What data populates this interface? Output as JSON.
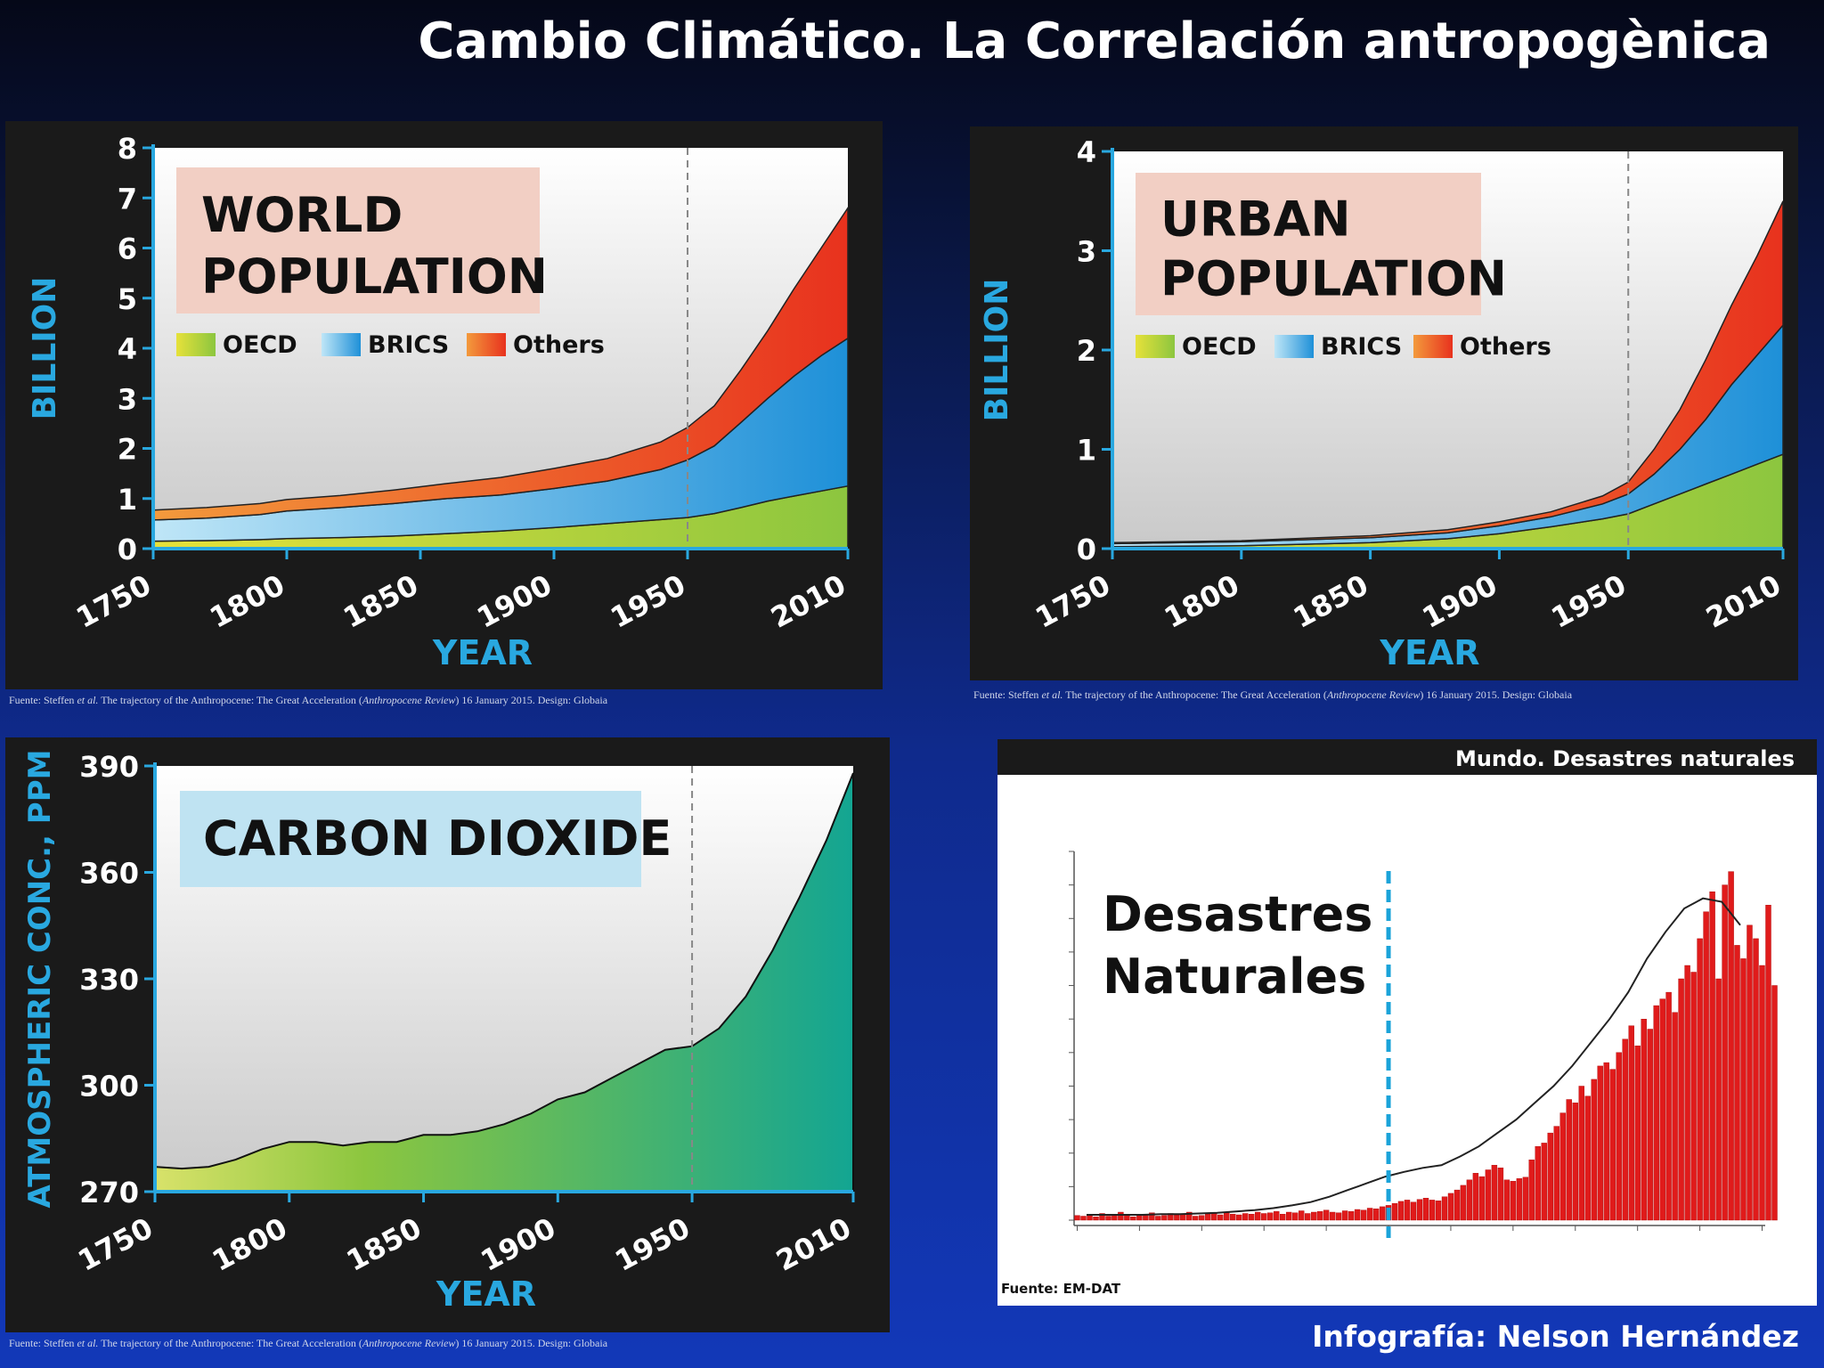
{
  "title": "Cambio Climático. La Correlación antropogènica",
  "credit": "Infografía: Nelson Hernández",
  "colors": {
    "accent_axis": "#29a8e0",
    "highlight_year": "#e8262b",
    "oecd": "#8cc63f",
    "brics": "#1e90d8",
    "others": "#e8321e",
    "co2": "#13a592",
    "disaster_bars": "#e01b1b"
  },
  "chart_data": [
    {
      "id": "world_population",
      "type": "area",
      "title": "WORLD POPULATION",
      "xlabel": "YEAR",
      "ylabel": "BILLION",
      "x_ticks": [
        "1750",
        "1800",
        "1850",
        "1900",
        "1950",
        "2010"
      ],
      "highlight_tick": "1950",
      "y_ticks": [
        "0",
        "1",
        "2",
        "3",
        "4",
        "5",
        "6",
        "7",
        "8"
      ],
      "xlim": [
        1750,
        2010
      ],
      "ylim": [
        0,
        8
      ],
      "x": [
        1750,
        1770,
        1790,
        1800,
        1820,
        1840,
        1860,
        1880,
        1900,
        1920,
        1940,
        1950,
        1960,
        1970,
        1980,
        1990,
        2000,
        2010
      ],
      "series": [
        {
          "name": "OECD",
          "values": [
            0.15,
            0.16,
            0.18,
            0.2,
            0.22,
            0.25,
            0.3,
            0.35,
            0.42,
            0.5,
            0.58,
            0.62,
            0.7,
            0.82,
            0.95,
            1.05,
            1.15,
            1.25
          ]
        },
        {
          "name": "BRICS",
          "values": [
            0.42,
            0.45,
            0.5,
            0.55,
            0.6,
            0.65,
            0.7,
            0.72,
            0.78,
            0.85,
            1.0,
            1.15,
            1.35,
            1.7,
            2.05,
            2.4,
            2.7,
            2.95
          ]
        },
        {
          "name": "Others",
          "values": [
            0.2,
            0.21,
            0.22,
            0.23,
            0.24,
            0.27,
            0.3,
            0.35,
            0.4,
            0.45,
            0.55,
            0.65,
            0.8,
            1.05,
            1.35,
            1.75,
            2.15,
            2.6
          ]
        }
      ],
      "grid": false,
      "legend": "top-left"
    },
    {
      "id": "urban_population",
      "type": "area",
      "title": "URBAN POPULATION",
      "xlabel": "YEAR",
      "ylabel": "BILLION",
      "x_ticks": [
        "1750",
        "1800",
        "1850",
        "1900",
        "1950",
        "2010"
      ],
      "highlight_tick": "1950",
      "y_ticks": [
        "0",
        "1",
        "2",
        "3",
        "4"
      ],
      "xlim": [
        1750,
        2010
      ],
      "ylim": [
        0,
        4
      ],
      "x": [
        1750,
        1800,
        1850,
        1880,
        1900,
        1920,
        1940,
        1950,
        1960,
        1970,
        1980,
        1990,
        2000,
        2010
      ],
      "series": [
        {
          "name": "OECD",
          "values": [
            0.02,
            0.03,
            0.06,
            0.1,
            0.15,
            0.22,
            0.3,
            0.35,
            0.45,
            0.55,
            0.65,
            0.75,
            0.85,
            0.95
          ]
        },
        {
          "name": "BRICS",
          "values": [
            0.03,
            0.04,
            0.05,
            0.06,
            0.08,
            0.1,
            0.15,
            0.2,
            0.3,
            0.45,
            0.65,
            0.9,
            1.1,
            1.3
          ]
        },
        {
          "name": "Others",
          "values": [
            0.01,
            0.01,
            0.02,
            0.03,
            0.04,
            0.05,
            0.08,
            0.12,
            0.25,
            0.4,
            0.6,
            0.8,
            1.0,
            1.25
          ]
        }
      ],
      "grid": false,
      "legend": "top-left"
    },
    {
      "id": "carbon_dioxide",
      "type": "area",
      "title": "CARBON DIOXIDE",
      "xlabel": "YEAR",
      "ylabel": "ATMOSPHERIC CONC., PPM",
      "x_ticks": [
        "1750",
        "1800",
        "1850",
        "1900",
        "1950",
        "2010"
      ],
      "highlight_tick": "1950",
      "y_ticks": [
        "270",
        "300",
        "330",
        "360",
        "390"
      ],
      "xlim": [
        1750,
        2010
      ],
      "ylim": [
        270,
        390
      ],
      "x": [
        1750,
        1760,
        1770,
        1780,
        1790,
        1800,
        1810,
        1820,
        1830,
        1840,
        1850,
        1860,
        1870,
        1880,
        1890,
        1900,
        1910,
        1920,
        1930,
        1940,
        1950,
        1960,
        1970,
        1980,
        1990,
        2000,
        2010
      ],
      "values": [
        277,
        276.5,
        277,
        279,
        282,
        284,
        284,
        283,
        284,
        284,
        286,
        286,
        287,
        289,
        292,
        296,
        298,
        302,
        306,
        310,
        311,
        316,
        325,
        338,
        353,
        369,
        388
      ],
      "grid": false
    },
    {
      "id": "natural_disasters",
      "type": "bar",
      "title": "Mundo.  Desastres naturales",
      "annotation": "Desastres Naturales",
      "source": "Fuente: EM-DAT",
      "xlim": [
        1900,
        2011
      ],
      "ylim": [
        0,
        550
      ],
      "marker_year": 1950,
      "years_start": 1900,
      "values": [
        7,
        6,
        8,
        5,
        10,
        6,
        9,
        12,
        7,
        5,
        8,
        9,
        11,
        6,
        7,
        10,
        8,
        9,
        12,
        6,
        7,
        9,
        10,
        8,
        11,
        9,
        8,
        10,
        9,
        12,
        10,
        11,
        13,
        9,
        12,
        11,
        14,
        10,
        12,
        13,
        15,
        12,
        11,
        14,
        13,
        16,
        15,
        18,
        17,
        20,
        22,
        25,
        28,
        30,
        27,
        31,
        33,
        30,
        29,
        35,
        40,
        45,
        52,
        60,
        70,
        65,
        75,
        82,
        78,
        60,
        58,
        62,
        64,
        90,
        110,
        115,
        130,
        140,
        160,
        180,
        175,
        200,
        185,
        210,
        230,
        235,
        225,
        250,
        270,
        290,
        260,
        300,
        285,
        320,
        330,
        340,
        310,
        360,
        380,
        370,
        420,
        460,
        490,
        360,
        500,
        520,
        410,
        390,
        440,
        420,
        380,
        470,
        350
      ],
      "trend": [
        8,
        8,
        8,
        8,
        9,
        9,
        10,
        11,
        13,
        15,
        18,
        22,
        27,
        35,
        45,
        55,
        65,
        72,
        78,
        82,
        95,
        110,
        130,
        150,
        175,
        200,
        230,
        265,
        300,
        340,
        390,
        430,
        465,
        480,
        475,
        440
      ],
      "grid": false
    }
  ]
}
